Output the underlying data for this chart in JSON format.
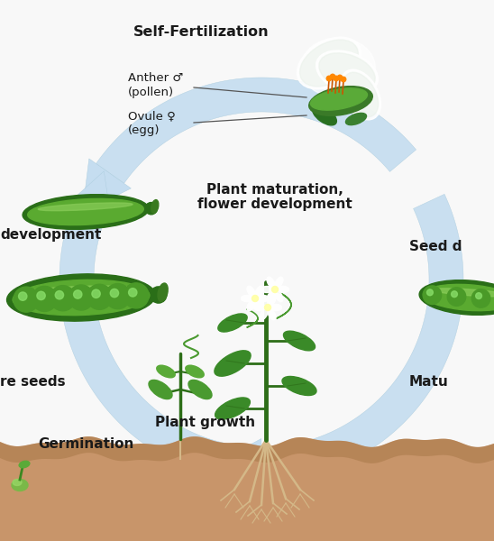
{
  "background_color": "#f8f8f8",
  "soil_color": "#c8956a",
  "soil_dark": "#a87848",
  "arrow_color": "#c5ddf0",
  "arrow_edge": "#aaccdd",
  "text_color": "#1a1a1a",
  "figsize": [
    5.48,
    6.0
  ],
  "dpi": 100,
  "labels": {
    "self_fert": "Self-Fertilization",
    "anther": "Anther ♂",
    "anther2": "(pollen)",
    "ovule": "Ovule ♀",
    "ovule2": "(egg)",
    "plant_mat": "Plant maturation,",
    "flower_dev": "flower development",
    "seed_d": "Seed d",
    "plant_growth": "Plant growth",
    "germination": "Germination",
    "re_seeds": "re seeds",
    "matu": "Matu",
    "development": "development"
  }
}
